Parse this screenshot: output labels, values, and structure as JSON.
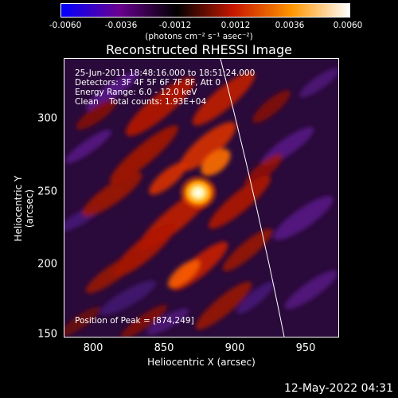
{
  "colorbar": {
    "ticks": [
      "-0.0060",
      "-0.0036",
      "-0.0012",
      "0.0012",
      "0.0036",
      "0.0060"
    ],
    "unit": "(photons cm⁻² s⁻¹ asec⁻²)",
    "colors": [
      "#0000ff",
      "#6a0090",
      "#000000",
      "#c81800",
      "#ff9600",
      "#ffffff"
    ]
  },
  "title": "Reconstructed RHESSI Image",
  "info": {
    "time": "25-Jun-2011 18:48:16.000 to 18:51:24.000",
    "detectors": "Detectors: 3F 4F 5F 6F 7F 8F, Att 0",
    "energy": "Energy Range: 6.0 - 12.0 keV",
    "clean": "Clean    Total counts: 1.93E+04"
  },
  "peak": "Position of Peak = [874,249]",
  "axes": {
    "xlabel": "Heliocentric X (arcsec)",
    "ylabel": "Heliocentric Y (arcsec)",
    "xticks": [
      "800",
      "850",
      "900",
      "950"
    ],
    "yticks": [
      "300",
      "250",
      "200",
      "150"
    ]
  },
  "timestamp": "12-May-2022 04:31"
}
